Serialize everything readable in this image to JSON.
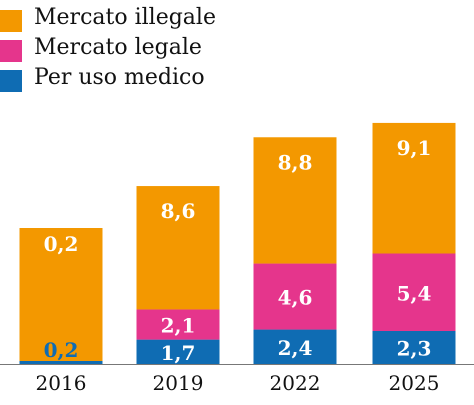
{
  "chart_data": {
    "type": "bar",
    "stacked": true,
    "categories": [
      "2016",
      "2019",
      "2022",
      "2025"
    ],
    "series": [
      {
        "name": "Per uso medico",
        "color": "#0f6cb3",
        "values": [
          0.2,
          1.7,
          2.4,
          2.3
        ],
        "labels": [
          "0,2",
          "1,7",
          "2,4",
          "2,3"
        ]
      },
      {
        "name": "Mercato legale",
        "color": "#e5358c",
        "values": [
          0,
          2.1,
          4.6,
          5.4
        ],
        "labels": [
          "",
          "2,1",
          "4,6",
          "5,4"
        ]
      },
      {
        "name": "Mercato illegale",
        "color": "#f39800",
        "values": [
          0.2,
          8.6,
          8.8,
          9.1
        ],
        "labels": [
          "0,2",
          "8,6",
          "8,8",
          "9,1"
        ]
      }
    ],
    "legend": {
      "position": "top-left",
      "order": [
        "Mercato illegale",
        "Mercato legale",
        "Per uso medico"
      ]
    },
    "grid": false,
    "title": "",
    "xlabel": "",
    "ylabel": ""
  }
}
